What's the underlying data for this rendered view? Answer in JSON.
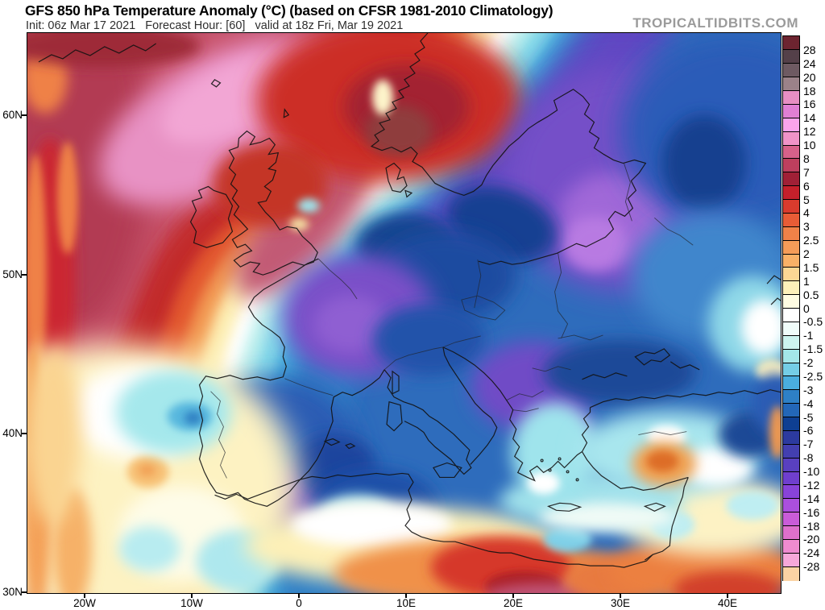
{
  "header": {
    "title": "GFS 850 hPa Temperature Anomaly (°C) (based on CFSR 1981-2010 Climatology)",
    "init_line": "Init: 06z Mar 17 2021   Forecast Hour: [60]   valid at 18z Fri, Mar 19 2021",
    "watermark": "TROPICALTIDBITS.COM"
  },
  "map": {
    "lat_labels": [
      "60N",
      "50N",
      "40N",
      "30N"
    ],
    "lon_labels": [
      "20W",
      "10W",
      "0",
      "10E",
      "20E",
      "30E",
      "40E"
    ]
  },
  "colorbar": {
    "ticks": [
      "28",
      "24",
      "20",
      "18",
      "16",
      "14",
      "12",
      "10",
      "8",
      "7",
      "6",
      "5",
      "4",
      "3",
      "2.5",
      "2",
      "1.5",
      "1",
      "0.5",
      "0",
      "-0.5",
      "-1",
      "-1.5",
      "-2",
      "-2.5",
      "-3",
      "-4",
      "-5",
      "-6",
      "-7",
      "-8",
      "-10",
      "-12",
      "-14",
      "-16",
      "-18",
      "-20",
      "-24",
      "-28"
    ],
    "segment_colors": [
      "#6d2430",
      "#544049",
      "#6e5a62",
      "#9b8289",
      "#e78fc3",
      "#e07fd4",
      "#fba4ec",
      "#f093c8",
      "#d7618a",
      "#bd3f5e",
      "#a02036",
      "#c5202b",
      "#da3b2d",
      "#e85c36",
      "#f08148",
      "#f59c58",
      "#f9b167",
      "#fcd794",
      "#fdf0ba",
      "#fffce2",
      "#ffffff",
      "#f0fcfa",
      "#cdf4f0",
      "#a4e6e9",
      "#74cde6",
      "#4aaede",
      "#2e80c6",
      "#2367b8",
      "#0e3f92",
      "#2c3a9f",
      "#433fb0",
      "#5940c0",
      "#6f3fce",
      "#8943d9",
      "#ab4fdd",
      "#c95cd8",
      "#de70cc",
      "#ee8bd0",
      "#f6a8da",
      "#fbd3a4"
    ]
  }
}
